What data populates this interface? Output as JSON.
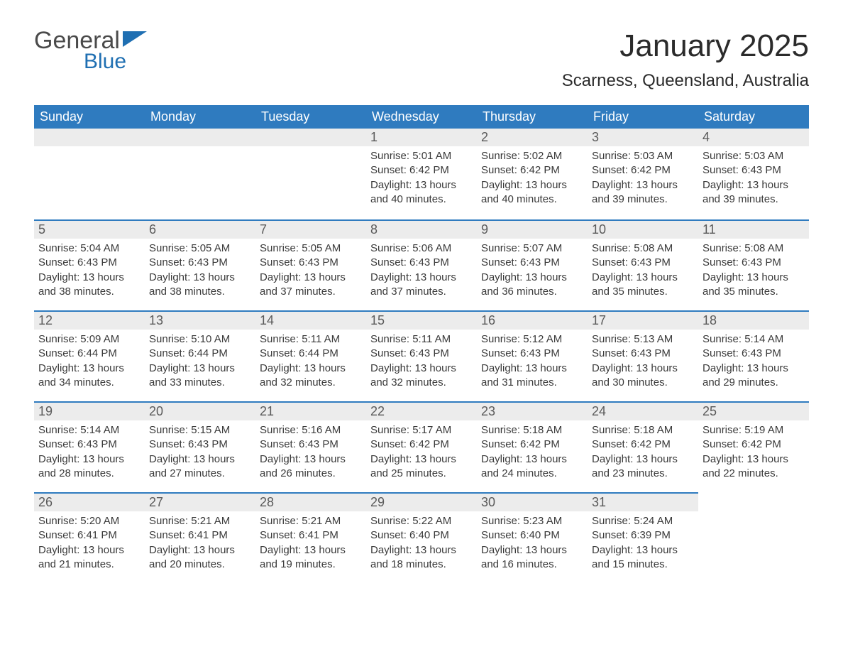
{
  "logo": {
    "word1": "General",
    "word2": "Blue"
  },
  "title": "January 2025",
  "location": "Scarness, Queensland, Australia",
  "colors": {
    "header_bg": "#2f7bbf",
    "header_text": "#ffffff",
    "daynum_bg": "#ececec",
    "row_border": "#2f7bbf",
    "body_text": "#3a3a3a",
    "logo_blue": "#1f6fb2"
  },
  "weekday_labels": [
    "Sunday",
    "Monday",
    "Tuesday",
    "Wednesday",
    "Thursday",
    "Friday",
    "Saturday"
  ],
  "labels": {
    "sunrise": "Sunrise:",
    "sunset": "Sunset:",
    "daylight": "Daylight:"
  },
  "weeks": [
    [
      null,
      null,
      null,
      {
        "day": "1",
        "sunrise": "5:01 AM",
        "sunset": "6:42 PM",
        "daylight": "13 hours and 40 minutes."
      },
      {
        "day": "2",
        "sunrise": "5:02 AM",
        "sunset": "6:42 PM",
        "daylight": "13 hours and 40 minutes."
      },
      {
        "day": "3",
        "sunrise": "5:03 AM",
        "sunset": "6:42 PM",
        "daylight": "13 hours and 39 minutes."
      },
      {
        "day": "4",
        "sunrise": "5:03 AM",
        "sunset": "6:43 PM",
        "daylight": "13 hours and 39 minutes."
      }
    ],
    [
      {
        "day": "5",
        "sunrise": "5:04 AM",
        "sunset": "6:43 PM",
        "daylight": "13 hours and 38 minutes."
      },
      {
        "day": "6",
        "sunrise": "5:05 AM",
        "sunset": "6:43 PM",
        "daylight": "13 hours and 38 minutes."
      },
      {
        "day": "7",
        "sunrise": "5:05 AM",
        "sunset": "6:43 PM",
        "daylight": "13 hours and 37 minutes."
      },
      {
        "day": "8",
        "sunrise": "5:06 AM",
        "sunset": "6:43 PM",
        "daylight": "13 hours and 37 minutes."
      },
      {
        "day": "9",
        "sunrise": "5:07 AM",
        "sunset": "6:43 PM",
        "daylight": "13 hours and 36 minutes."
      },
      {
        "day": "10",
        "sunrise": "5:08 AM",
        "sunset": "6:43 PM",
        "daylight": "13 hours and 35 minutes."
      },
      {
        "day": "11",
        "sunrise": "5:08 AM",
        "sunset": "6:43 PM",
        "daylight": "13 hours and 35 minutes."
      }
    ],
    [
      {
        "day": "12",
        "sunrise": "5:09 AM",
        "sunset": "6:44 PM",
        "daylight": "13 hours and 34 minutes."
      },
      {
        "day": "13",
        "sunrise": "5:10 AM",
        "sunset": "6:44 PM",
        "daylight": "13 hours and 33 minutes."
      },
      {
        "day": "14",
        "sunrise": "5:11 AM",
        "sunset": "6:44 PM",
        "daylight": "13 hours and 32 minutes."
      },
      {
        "day": "15",
        "sunrise": "5:11 AM",
        "sunset": "6:43 PM",
        "daylight": "13 hours and 32 minutes."
      },
      {
        "day": "16",
        "sunrise": "5:12 AM",
        "sunset": "6:43 PM",
        "daylight": "13 hours and 31 minutes."
      },
      {
        "day": "17",
        "sunrise": "5:13 AM",
        "sunset": "6:43 PM",
        "daylight": "13 hours and 30 minutes."
      },
      {
        "day": "18",
        "sunrise": "5:14 AM",
        "sunset": "6:43 PM",
        "daylight": "13 hours and 29 minutes."
      }
    ],
    [
      {
        "day": "19",
        "sunrise": "5:14 AM",
        "sunset": "6:43 PM",
        "daylight": "13 hours and 28 minutes."
      },
      {
        "day": "20",
        "sunrise": "5:15 AM",
        "sunset": "6:43 PM",
        "daylight": "13 hours and 27 minutes."
      },
      {
        "day": "21",
        "sunrise": "5:16 AM",
        "sunset": "6:43 PM",
        "daylight": "13 hours and 26 minutes."
      },
      {
        "day": "22",
        "sunrise": "5:17 AM",
        "sunset": "6:42 PM",
        "daylight": "13 hours and 25 minutes."
      },
      {
        "day": "23",
        "sunrise": "5:18 AM",
        "sunset": "6:42 PM",
        "daylight": "13 hours and 24 minutes."
      },
      {
        "day": "24",
        "sunrise": "5:18 AM",
        "sunset": "6:42 PM",
        "daylight": "13 hours and 23 minutes."
      },
      {
        "day": "25",
        "sunrise": "5:19 AM",
        "sunset": "6:42 PM",
        "daylight": "13 hours and 22 minutes."
      }
    ],
    [
      {
        "day": "26",
        "sunrise": "5:20 AM",
        "sunset": "6:41 PM",
        "daylight": "13 hours and 21 minutes."
      },
      {
        "day": "27",
        "sunrise": "5:21 AM",
        "sunset": "6:41 PM",
        "daylight": "13 hours and 20 minutes."
      },
      {
        "day": "28",
        "sunrise": "5:21 AM",
        "sunset": "6:41 PM",
        "daylight": "13 hours and 19 minutes."
      },
      {
        "day": "29",
        "sunrise": "5:22 AM",
        "sunset": "6:40 PM",
        "daylight": "13 hours and 18 minutes."
      },
      {
        "day": "30",
        "sunrise": "5:23 AM",
        "sunset": "6:40 PM",
        "daylight": "13 hours and 16 minutes."
      },
      {
        "day": "31",
        "sunrise": "5:24 AM",
        "sunset": "6:39 PM",
        "daylight": "13 hours and 15 minutes."
      },
      null
    ]
  ]
}
